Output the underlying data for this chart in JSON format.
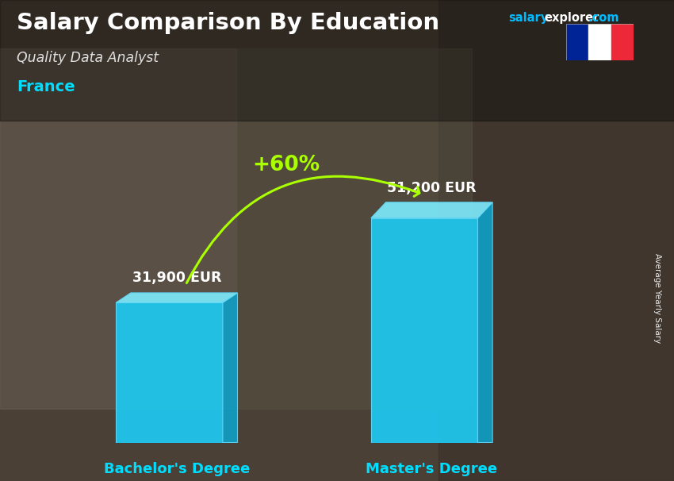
{
  "title_main": "Salary Comparison By Education",
  "subtitle": "Quality Data Analyst",
  "country": "France",
  "categories": [
    "Bachelor's Degree",
    "Master's Degree"
  ],
  "values": [
    31900,
    51200
  ],
  "value_labels": [
    "31,900 EUR",
    "51,200 EUR"
  ],
  "pct_change": "+60%",
  "bar_color_front": "#1EC8F0",
  "bar_color_top": "#7DE8F8",
  "bar_color_side": "#0FA0C8",
  "ylabel_rotated": "Average Yearly Salary",
  "bg_color": "#5a5040",
  "title_color": "#ffffff",
  "subtitle_color": "#e0e0e0",
  "country_color": "#00DDFF",
  "salary_color": "#00BBFF",
  "explorer_color": "#ffffff",
  "dotcom_color": "#00BBFF",
  "pct_color": "#AAFF00",
  "value_color": "#ffffff",
  "xlabel_color": "#00DDFF",
  "arrow_color": "#AAFF00",
  "flag_blue": "#002395",
  "flag_white": "#FFFFFF",
  "flag_red": "#ED2939"
}
